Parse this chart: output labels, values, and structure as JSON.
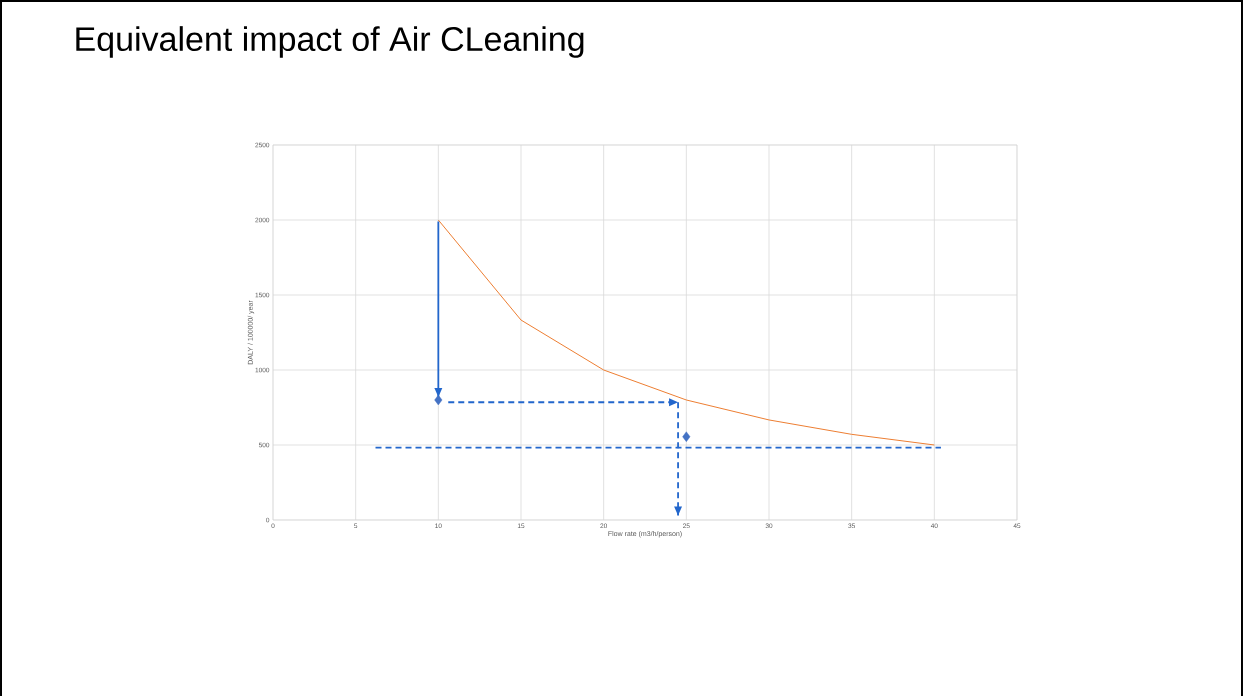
{
  "chart_data": {
    "type": "line",
    "title": "Equivalent impact of Air CLeaning",
    "xlabel": "Flow rate (m3/h/person)",
    "ylabel": "DALY / 100000/ year",
    "xlim": [
      0,
      45
    ],
    "xticks": [
      0,
      5,
      10,
      15,
      20,
      25,
      30,
      35,
      40,
      45
    ],
    "ylim": [
      0,
      2500
    ],
    "yticks": [
      0,
      500,
      1000,
      1500,
      2000,
      2500
    ],
    "grid": true,
    "marker": "none",
    "series": [
      {
        "color": "#ed7d31",
        "x": [
          10,
          15,
          20,
          25,
          30,
          35,
          40
        ],
        "values": [
          2000,
          1333,
          1000,
          800,
          667,
          571,
          500
        ]
      },
      {
        "type": "scatter",
        "marker": "diamond",
        "color": "#4472c4",
        "x": [
          10,
          25
        ],
        "values": [
          800,
          555
        ]
      },
      {
        "color": "#2266cc",
        "line_style": "solid",
        "x": [
          10,
          10
        ],
        "values": [
          1990,
          820
        ]
      },
      {
        "color": "#2266cc",
        "line_style": "dashed",
        "x": [
          10.6,
          24.5
        ],
        "values": [
          785,
          785
        ]
      },
      {
        "color": "#2266cc",
        "line_style": "dashed",
        "x": [
          24.5,
          24.5
        ],
        "values": [
          785,
          30
        ]
      },
      {
        "color": "#2266cc",
        "line_style": "dashed",
        "x": [
          6.2,
          40.4
        ],
        "values": [
          482,
          482
        ]
      }
    ]
  }
}
